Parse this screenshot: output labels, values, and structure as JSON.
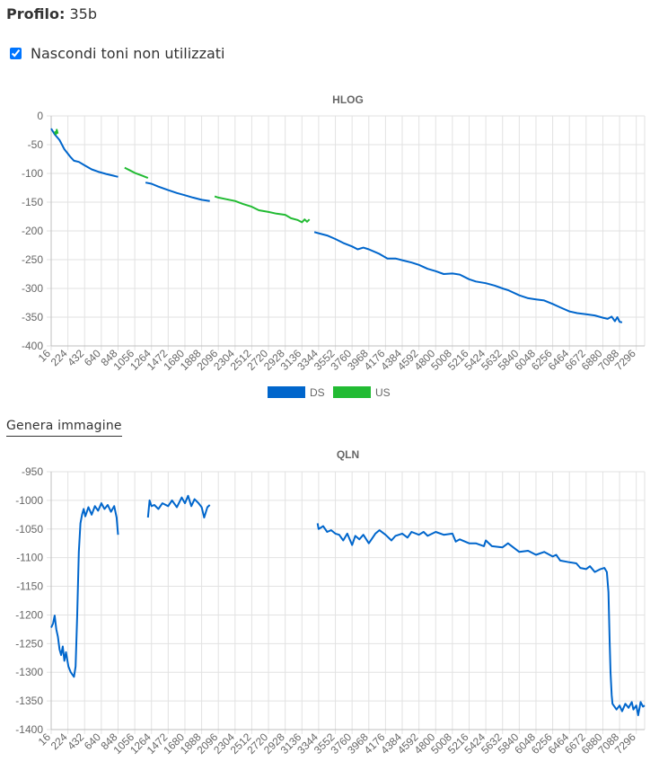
{
  "profile": {
    "label": "Profilo",
    "colon": ":",
    "value": "35b"
  },
  "hide_unused": {
    "label": "Nascondi toni non utilizzati",
    "checked": true
  },
  "generate_button": {
    "label": "Genera immagine"
  },
  "colors": {
    "ds": "#0066cc",
    "us": "#22bb33",
    "grid": "#e2e2e2",
    "axis": "#666666"
  },
  "chart_data": [
    {
      "type": "line",
      "title": "HLOG",
      "xlabel": "",
      "ylabel": "",
      "xlim": [
        16,
        7400
      ],
      "ylim": [
        -400,
        0
      ],
      "x_ticks": [
        16,
        224,
        432,
        640,
        848,
        1056,
        1264,
        1472,
        1680,
        1888,
        2096,
        2304,
        2512,
        2720,
        2928,
        3136,
        3344,
        3552,
        3760,
        3968,
        4176,
        4384,
        4592,
        4800,
        5008,
        5216,
        5424,
        5632,
        5840,
        6048,
        6256,
        6464,
        6672,
        6880,
        7088,
        7296
      ],
      "y_ticks": [
        0,
        -50,
        -100,
        -150,
        -200,
        -250,
        -300,
        -350,
        -400
      ],
      "grid": true,
      "legend": "bottom-center",
      "series": [
        {
          "name": "DS",
          "color": "#0066cc",
          "segments": [
            [
              [
                16,
                -22
              ],
              [
                60,
                -32
              ],
              [
                120,
                -42
              ],
              [
                180,
                -58
              ],
              [
                260,
                -72
              ],
              [
                300,
                -78
              ],
              [
                360,
                -80
              ],
              [
                432,
                -86
              ],
              [
                520,
                -93
              ],
              [
                600,
                -97
              ],
              [
                700,
                -101
              ],
              [
                848,
                -106
              ]
            ],
            [
              [
                1190,
                -116
              ],
              [
                1264,
                -118
              ],
              [
                1350,
                -123
              ],
              [
                1472,
                -129
              ],
              [
                1580,
                -134
              ],
              [
                1680,
                -138
              ],
              [
                1780,
                -142
              ],
              [
                1888,
                -146
              ],
              [
                1990,
                -148
              ]
            ],
            [
              [
                3290,
                -202
              ],
              [
                3344,
                -204
              ],
              [
                3450,
                -208
              ],
              [
                3552,
                -214
              ],
              [
                3650,
                -221
              ],
              [
                3760,
                -227
              ],
              [
                3830,
                -232
              ],
              [
                3900,
                -229
              ],
              [
                3968,
                -232
              ],
              [
                4100,
                -240
              ],
              [
                4200,
                -248
              ],
              [
                4300,
                -248
              ],
              [
                4384,
                -251
              ],
              [
                4500,
                -255
              ],
              [
                4592,
                -259
              ],
              [
                4700,
                -266
              ],
              [
                4800,
                -270
              ],
              [
                4900,
                -275
              ],
              [
                5008,
                -274
              ],
              [
                5100,
                -276
              ],
              [
                5216,
                -284
              ],
              [
                5300,
                -288
              ],
              [
                5424,
                -291
              ],
              [
                5532,
                -295
              ],
              [
                5632,
                -300
              ],
              [
                5700,
                -303
              ],
              [
                5840,
                -312
              ],
              [
                5950,
                -317
              ],
              [
                6048,
                -319
              ],
              [
                6150,
                -321
              ],
              [
                6256,
                -327
              ],
              [
                6350,
                -333
              ],
              [
                6464,
                -340
              ],
              [
                6560,
                -343
              ],
              [
                6672,
                -345
              ],
              [
                6780,
                -347
              ],
              [
                6880,
                -351
              ],
              [
                6940,
                -353
              ],
              [
                6990,
                -349
              ],
              [
                7030,
                -357
              ],
              [
                7060,
                -350
              ],
              [
                7088,
                -358
              ],
              [
                7120,
                -359
              ]
            ]
          ]
        },
        {
          "name": "US",
          "color": "#22bb33",
          "segments": [
            [
              [
                60,
                -27
              ],
              [
                75,
                -32
              ],
              [
                85,
                -24
              ],
              [
                98,
                -31
              ]
            ],
            [
              [
                930,
                -90
              ],
              [
                1000,
                -95
              ],
              [
                1056,
                -99
              ],
              [
                1150,
                -104
              ],
              [
                1220,
                -108
              ]
            ],
            [
              [
                2050,
                -140
              ],
              [
                2096,
                -142
              ],
              [
                2200,
                -145
              ],
              [
                2304,
                -148
              ],
              [
                2400,
                -153
              ],
              [
                2512,
                -158
              ],
              [
                2600,
                -164
              ],
              [
                2720,
                -167
              ],
              [
                2820,
                -170
              ],
              [
                2928,
                -172
              ],
              [
                3000,
                -178
              ],
              [
                3080,
                -181
              ],
              [
                3136,
                -185
              ],
              [
                3170,
                -180
              ],
              [
                3200,
                -184
              ],
              [
                3230,
                -180
              ]
            ]
          ]
        }
      ]
    },
    {
      "type": "line",
      "title": "QLN",
      "xlabel": "",
      "ylabel": "",
      "xlim": [
        16,
        7400
      ],
      "ylim": [
        -1400,
        -950
      ],
      "x_ticks": [
        16,
        224,
        432,
        640,
        848,
        1056,
        1264,
        1472,
        1680,
        1888,
        2096,
        2304,
        2512,
        2720,
        2928,
        3136,
        3344,
        3552,
        3760,
        3968,
        4176,
        4384,
        4592,
        4800,
        5008,
        5216,
        5424,
        5632,
        5840,
        6048,
        6256,
        6464,
        6672,
        6880,
        7088,
        7296
      ],
      "y_ticks": [
        -950,
        -1000,
        -1050,
        -1100,
        -1150,
        -1200,
        -1250,
        -1300,
        -1350,
        -1400
      ],
      "grid": true,
      "series": [
        {
          "name": "",
          "color": "#0066cc",
          "segments": [
            [
              [
                16,
                -1222
              ],
              [
                40,
                -1215
              ],
              [
                60,
                -1201
              ],
              [
                80,
                -1225
              ],
              [
                100,
                -1238
              ],
              [
                120,
                -1260
              ],
              [
                140,
                -1270
              ],
              [
                160,
                -1255
              ],
              [
                180,
                -1280
              ],
              [
                200,
                -1265
              ],
              [
                230,
                -1290
              ],
              [
                260,
                -1300
              ],
              [
                300,
                -1308
              ],
              [
                320,
                -1290
              ],
              [
                340,
                -1200
              ],
              [
                360,
                -1090
              ],
              [
                380,
                -1040
              ],
              [
                400,
                -1025
              ],
              [
                420,
                -1015
              ],
              [
                440,
                -1028
              ],
              [
                480,
                -1012
              ],
              [
                520,
                -1025
              ],
              [
                560,
                -1010
              ],
              [
                600,
                -1018
              ],
              [
                640,
                -1005
              ],
              [
                680,
                -1015
              ],
              [
                720,
                -1008
              ],
              [
                760,
                -1020
              ],
              [
                800,
                -1010
              ],
              [
                830,
                -1030
              ],
              [
                848,
                -1060
              ]
            ],
            [
              [
                1220,
                -1030
              ],
              [
                1240,
                -1000
              ],
              [
                1264,
                -1010
              ],
              [
                1300,
                -1008
              ],
              [
                1350,
                -1015
              ],
              [
                1400,
                -1005
              ],
              [
                1472,
                -1010
              ],
              [
                1520,
                -1000
              ],
              [
                1580,
                -1012
              ],
              [
                1640,
                -995
              ],
              [
                1680,
                -1005
              ],
              [
                1720,
                -992
              ],
              [
                1760,
                -1010
              ],
              [
                1800,
                -998
              ],
              [
                1850,
                -1005
              ],
              [
                1888,
                -1012
              ],
              [
                1920,
                -1030
              ],
              [
                1960,
                -1012
              ],
              [
                1990,
                -1008
              ]
            ],
            [
              [
                3330,
                -1040
              ],
              [
                3344,
                -1050
              ],
              [
                3400,
                -1045
              ],
              [
                3450,
                -1055
              ],
              [
                3500,
                -1052
              ],
              [
                3552,
                -1058
              ],
              [
                3600,
                -1060
              ],
              [
                3650,
                -1070
              ],
              [
                3700,
                -1058
              ],
              [
                3760,
                -1078
              ],
              [
                3800,
                -1062
              ],
              [
                3850,
                -1068
              ],
              [
                3900,
                -1060
              ],
              [
                3968,
                -1075
              ],
              [
                4050,
                -1058
              ],
              [
                4100,
                -1052
              ],
              [
                4176,
                -1060
              ],
              [
                4250,
                -1070
              ],
              [
                4300,
                -1062
              ],
              [
                4384,
                -1058
              ],
              [
                4450,
                -1065
              ],
              [
                4500,
                -1055
              ],
              [
                4592,
                -1060
              ],
              [
                4650,
                -1055
              ],
              [
                4700,
                -1062
              ],
              [
                4800,
                -1055
              ],
              [
                4900,
                -1060
              ],
              [
                5008,
                -1058
              ],
              [
                5050,
                -1072
              ],
              [
                5100,
                -1068
              ],
              [
                5216,
                -1075
              ],
              [
                5300,
                -1075
              ],
              [
                5400,
                -1080
              ],
              [
                5424,
                -1070
              ],
              [
                5500,
                -1080
              ],
              [
                5632,
                -1082
              ],
              [
                5700,
                -1075
              ],
              [
                5840,
                -1090
              ],
              [
                5950,
                -1088
              ],
              [
                6048,
                -1095
              ],
              [
                6150,
                -1090
              ],
              [
                6256,
                -1098
              ],
              [
                6300,
                -1095
              ],
              [
                6350,
                -1105
              ],
              [
                6464,
                -1108
              ],
              [
                6550,
                -1110
              ],
              [
                6600,
                -1118
              ],
              [
                6672,
                -1120
              ],
              [
                6720,
                -1115
              ],
              [
                6780,
                -1125
              ],
              [
                6850,
                -1120
              ],
              [
                6900,
                -1118
              ],
              [
                6930,
                -1125
              ],
              [
                6950,
                -1160
              ],
              [
                6965,
                -1250
              ],
              [
                6975,
                -1300
              ],
              [
                6990,
                -1340
              ],
              [
                7000,
                -1355
              ],
              [
                7050,
                -1365
              ],
              [
                7088,
                -1358
              ],
              [
                7120,
                -1368
              ],
              [
                7160,
                -1355
              ],
              [
                7200,
                -1362
              ],
              [
                7240,
                -1352
              ],
              [
                7260,
                -1365
              ],
              [
                7296,
                -1358
              ],
              [
                7320,
                -1375
              ],
              [
                7350,
                -1352
              ],
              [
                7380,
                -1360
              ],
              [
                7400,
                -1358
              ]
            ]
          ]
        }
      ]
    }
  ]
}
